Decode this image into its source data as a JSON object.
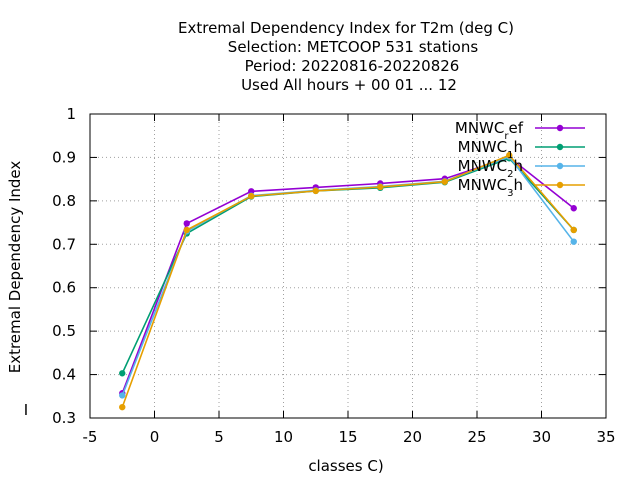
{
  "chart_data": {
    "type": "line",
    "title_lines": [
      "Extremal Dependency Index  for T2m (deg C)",
      "Selection: METCOOP    531 stations",
      "Period: 20220816-20220826",
      "Used  All hours  + 00 01 ... 12"
    ],
    "xlabel": "classes C)",
    "ylabel": "Extremal Dependency Index",
    "xlim": [
      -5,
      35
    ],
    "ylim": [
      0.3,
      1.0
    ],
    "xticks": [
      -5,
      0,
      5,
      10,
      15,
      20,
      25,
      30,
      35
    ],
    "yticks": [
      0.3,
      0.4,
      0.5,
      0.6,
      0.7,
      0.8,
      0.9,
      1.0
    ],
    "xtick_labels": [
      "-5",
      "0",
      "5",
      "10",
      "15",
      "20",
      "25",
      "30",
      "35"
    ],
    "ytick_labels": [
      "0.3",
      "0.4",
      "0.5",
      "0.6",
      "0.7",
      "0.8",
      "0.9",
      "1"
    ],
    "grid": true,
    "legend_position": "top-right",
    "x": [
      -2.5,
      2.5,
      7.5,
      12.5,
      17.5,
      22.5,
      27.5,
      32.5
    ],
    "series": [
      {
        "name_base": "MNWC",
        "name_sub": "r",
        "name_rest": "ef",
        "color": "#9400d3",
        "values": [
          0.357,
          0.748,
          0.822,
          0.831,
          0.84,
          0.851,
          0.9,
          0.783
        ]
      },
      {
        "name_base": "MNWC",
        "name_sub": "1",
        "name_rest": "h",
        "color": "#009e73",
        "values": [
          0.403,
          0.725,
          0.81,
          0.823,
          0.83,
          0.843,
          0.898,
          0.733
        ]
      },
      {
        "name_base": "MNWC",
        "name_sub": "2",
        "name_rest": "h",
        "color": "#56b4e9",
        "values": [
          0.352,
          0.73,
          0.812,
          0.824,
          0.833,
          0.845,
          0.902,
          0.706
        ]
      },
      {
        "name_base": "MNWC",
        "name_sub": "3",
        "name_rest": "h",
        "color": "#e69f00",
        "values": [
          0.325,
          0.733,
          0.811,
          0.823,
          0.832,
          0.844,
          0.905,
          0.733
        ]
      }
    ]
  },
  "stray_mark": "I"
}
